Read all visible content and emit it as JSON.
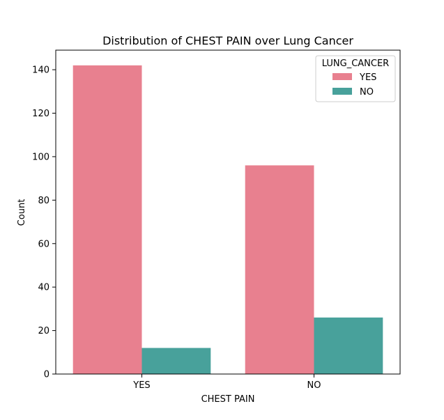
{
  "chart_data": {
    "type": "bar",
    "title": "Distribution of CHEST PAIN over Lung Cancer",
    "xlabel": "CHEST PAIN",
    "ylabel": "Count",
    "categories": [
      "YES",
      "NO"
    ],
    "ylim": [
      0,
      149
    ],
    "yticks": [
      0,
      20,
      40,
      60,
      80,
      100,
      120,
      140
    ],
    "grid": false,
    "legend": {
      "title": "LUNG_CANCER",
      "placement": "top-right"
    },
    "series": [
      {
        "name": "YES",
        "color": "#e8808f",
        "values": [
          142,
          96
        ]
      },
      {
        "name": "NO",
        "color": "#48a19b",
        "values": [
          12,
          26
        ]
      }
    ]
  }
}
